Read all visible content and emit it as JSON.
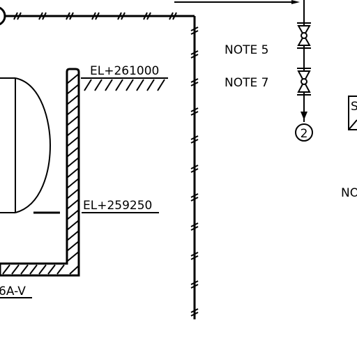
{
  "labels": {
    "elevation_top": "EL+261000",
    "elevation_bottom": "EL+259250",
    "note_5": "NOTE 5",
    "note_7": "NOTE 7",
    "bubble_2": "2",
    "line_tag_fragment": "6A-V",
    "right_fragment_no": "NO",
    "right_box_fragment": "S"
  }
}
